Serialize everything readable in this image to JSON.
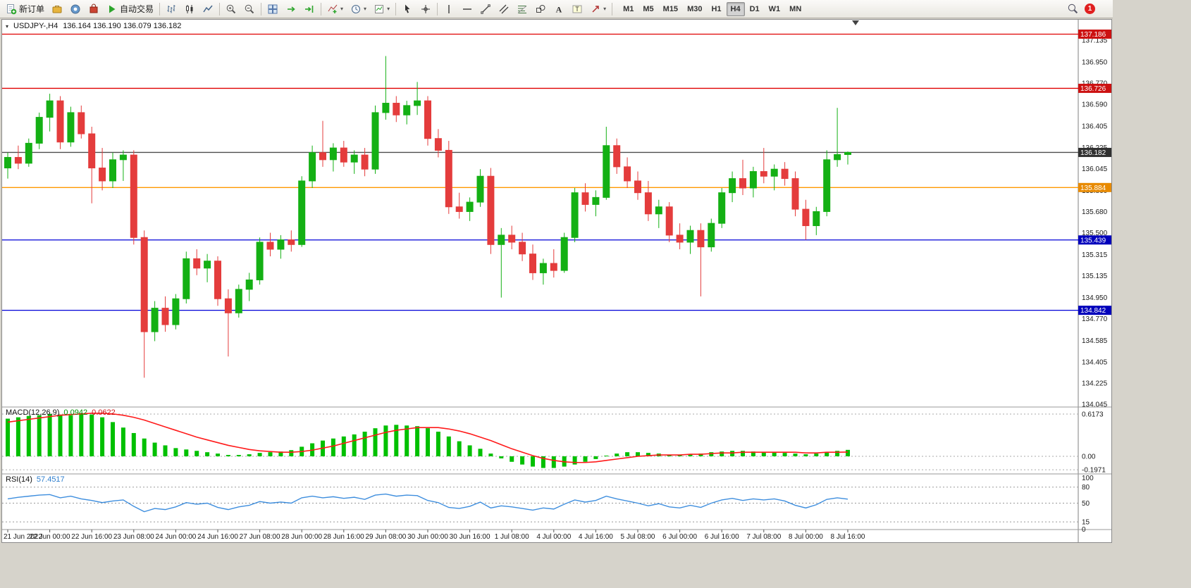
{
  "toolbar": {
    "new_order_label": "新订单",
    "autotrading_label": "自动交易",
    "timeframes": [
      "M1",
      "M5",
      "M15",
      "M30",
      "H1",
      "H4",
      "D1",
      "W1",
      "MN"
    ],
    "active_timeframe": "H4",
    "notification_count": "1",
    "icon_names": [
      "new-order-icon",
      "metaeditor-icon",
      "community-icon",
      "market-icon",
      "autotrading-icon",
      "bar-chart-icon",
      "candlestick-icon",
      "line-chart-icon",
      "zoom-in-icon",
      "zoom-out-icon",
      "tile-windows-icon",
      "auto-scroll-icon",
      "chart-shift-icon",
      "indicators-icon",
      "periods-icon",
      "templates-icon",
      "cursor-icon",
      "crosshair-icon",
      "vertical-line-icon",
      "horizontal-line-icon",
      "trendline-icon",
      "channel-icon",
      "fibonacci-icon",
      "shapes-icon",
      "text-icon",
      "text-label-icon",
      "arrows-icon",
      "search-icon",
      "notification-icon"
    ]
  },
  "chart": {
    "symbol_period": "USDJPY-,H4",
    "ohlc": "136.164 136.190 136.079 136.182"
  },
  "colors": {
    "up": "#14b014",
    "down": "#e43c3c",
    "macd_hist": "#00c000",
    "macd_signal": "#ff1a1a",
    "rsi": "#3e8ede",
    "line_red": "#e00000",
    "line_orange": "#ff9900",
    "line_blue": "#0000d8",
    "line_current": "#4d4d4d",
    "badge_red": "#cc1111",
    "badge_orange": "#e88a00",
    "badge_blue": "#0000bb",
    "badge_current": "#303030"
  },
  "chart_data": {
    "type": "candlestick",
    "symbol": "USDJPY-",
    "timeframe": "H4",
    "ohlc_current": {
      "open": 136.164,
      "high": 136.19,
      "low": 136.079,
      "close": 136.182
    },
    "ylim": [
      134.045,
      137.135
    ],
    "price_axis_labels": [
      "137.135",
      "136.950",
      "136.770",
      "136.590",
      "136.405",
      "136.225",
      "136.045",
      "135.860",
      "135.680",
      "135.500",
      "135.315",
      "135.135",
      "134.950",
      "134.770",
      "134.585",
      "134.405",
      "134.225",
      "134.045"
    ],
    "x_labels": [
      "21 Jun 2022",
      "22 Jun 00:00",
      "22 Jun 16:00",
      "23 Jun 08:00",
      "24 Jun 00:00",
      "24 Jun 16:00",
      "27 Jun 08:00",
      "28 Jun 00:00",
      "28 Jun 16:00",
      "29 Jun 08:00",
      "30 Jun 00:00",
      "30 Jun 16:00",
      "1 Jul 08:00",
      "4 Jul 00:00",
      "4 Jul 16:00",
      "5 Jul 08:00",
      "6 Jul 00:00",
      "6 Jul 16:00",
      "7 Jul 08:00",
      "8 Jul 00:00",
      "8 Jul 16:00"
    ],
    "candles_per_label": 4,
    "hlines": [
      {
        "price": 137.186,
        "label": "137.186",
        "type": "red"
      },
      {
        "price": 136.726,
        "label": "136.726",
        "type": "red"
      },
      {
        "price": 136.182,
        "label": "136.182",
        "type": "current"
      },
      {
        "price": 135.884,
        "label": "135.884",
        "type": "orange"
      },
      {
        "price": 135.439,
        "label": "135.439",
        "type": "blue"
      },
      {
        "price": 134.842,
        "label": "134.842",
        "type": "blue"
      }
    ],
    "candles": [
      [
        136.05,
        136.18,
        135.96,
        136.14
      ],
      [
        136.14,
        136.24,
        136.04,
        136.09
      ],
      [
        136.09,
        136.3,
        136.06,
        136.26
      ],
      [
        136.26,
        136.52,
        136.21,
        136.48
      ],
      [
        136.48,
        136.68,
        136.36,
        136.62
      ],
      [
        136.62,
        136.66,
        136.21,
        136.27
      ],
      [
        136.27,
        136.57,
        136.23,
        136.52
      ],
      [
        136.52,
        136.58,
        136.3,
        136.34
      ],
      [
        136.34,
        136.4,
        135.75,
        136.05
      ],
      [
        136.05,
        136.22,
        135.86,
        135.94
      ],
      [
        135.94,
        136.18,
        135.88,
        136.12
      ],
      [
        136.12,
        136.2,
        135.94,
        136.16
      ],
      [
        136.16,
        136.2,
        135.4,
        135.46
      ],
      [
        135.46,
        135.52,
        134.27,
        134.66
      ],
      [
        134.66,
        134.92,
        134.58,
        134.86
      ],
      [
        134.86,
        134.96,
        134.66,
        134.72
      ],
      [
        134.72,
        134.98,
        134.68,
        134.94
      ],
      [
        134.94,
        135.34,
        134.9,
        135.28
      ],
      [
        135.28,
        135.36,
        135.14,
        135.2
      ],
      [
        135.2,
        135.32,
        135.08,
        135.26
      ],
      [
        135.26,
        135.3,
        134.88,
        134.94
      ],
      [
        134.94,
        135.02,
        134.45,
        134.82
      ],
      [
        134.82,
        135.06,
        134.78,
        135.02
      ],
      [
        135.02,
        135.16,
        134.92,
        135.1
      ],
      [
        135.1,
        135.46,
        135.06,
        135.42
      ],
      [
        135.42,
        135.5,
        135.3,
        135.36
      ],
      [
        135.36,
        135.48,
        135.28,
        135.44
      ],
      [
        135.44,
        135.52,
        135.34,
        135.4
      ],
      [
        135.4,
        135.98,
        135.38,
        135.94
      ],
      [
        135.94,
        136.24,
        135.88,
        136.18
      ],
      [
        136.18,
        136.45,
        136.06,
        136.12
      ],
      [
        136.12,
        136.26,
        136.02,
        136.22
      ],
      [
        136.22,
        136.28,
        136.06,
        136.1
      ],
      [
        136.1,
        136.2,
        136.0,
        136.16
      ],
      [
        136.16,
        136.22,
        135.98,
        136.04
      ],
      [
        136.04,
        136.58,
        136.0,
        136.52
      ],
      [
        136.52,
        137.0,
        136.46,
        136.6
      ],
      [
        136.6,
        136.66,
        136.44,
        136.5
      ],
      [
        136.5,
        136.62,
        136.42,
        136.58
      ],
      [
        136.58,
        136.78,
        136.5,
        136.62
      ],
      [
        136.62,
        136.66,
        136.24,
        136.3
      ],
      [
        136.3,
        136.38,
        136.14,
        136.2
      ],
      [
        136.2,
        136.28,
        135.66,
        135.72
      ],
      [
        135.72,
        135.84,
        135.62,
        135.68
      ],
      [
        135.68,
        135.8,
        135.6,
        135.76
      ],
      [
        135.76,
        136.04,
        135.72,
        135.98
      ],
      [
        135.98,
        136.05,
        135.32,
        135.4
      ],
      [
        135.4,
        135.54,
        134.95,
        135.48
      ],
      [
        135.48,
        135.56,
        135.36,
        135.42
      ],
      [
        135.42,
        135.5,
        135.26,
        135.32
      ],
      [
        135.32,
        135.4,
        135.1,
        135.16
      ],
      [
        135.16,
        135.28,
        135.06,
        135.24
      ],
      [
        135.24,
        135.36,
        135.12,
        135.18
      ],
      [
        135.18,
        135.5,
        135.16,
        135.46
      ],
      [
        135.46,
        135.88,
        135.42,
        135.84
      ],
      [
        135.84,
        135.92,
        135.68,
        135.74
      ],
      [
        135.74,
        135.86,
        135.64,
        135.8
      ],
      [
        135.8,
        136.4,
        135.78,
        136.24
      ],
      [
        136.24,
        136.3,
        136.0,
        136.06
      ],
      [
        136.06,
        136.14,
        135.88,
        135.94
      ],
      [
        135.94,
        136.02,
        135.78,
        135.84
      ],
      [
        135.84,
        135.94,
        135.6,
        135.66
      ],
      [
        135.66,
        135.78,
        135.54,
        135.72
      ],
      [
        135.72,
        135.76,
        135.42,
        135.48
      ],
      [
        135.48,
        135.58,
        135.36,
        135.42
      ],
      [
        135.42,
        135.56,
        135.32,
        135.52
      ],
      [
        135.52,
        135.58,
        134.96,
        135.38
      ],
      [
        135.38,
        135.62,
        135.34,
        135.58
      ],
      [
        135.58,
        135.88,
        135.54,
        135.84
      ],
      [
        135.84,
        136.02,
        135.76,
        135.96
      ],
      [
        135.96,
        136.12,
        135.82,
        135.88
      ],
      [
        135.88,
        136.06,
        135.8,
        136.02
      ],
      [
        136.02,
        136.22,
        135.92,
        135.98
      ],
      [
        135.98,
        136.08,
        135.86,
        136.04
      ],
      [
        136.04,
        136.1,
        135.9,
        135.96
      ],
      [
        135.96,
        136.02,
        135.64,
        135.7
      ],
      [
        135.7,
        135.78,
        135.44,
        135.56
      ],
      [
        135.56,
        135.72,
        135.48,
        135.68
      ],
      [
        135.68,
        136.2,
        135.64,
        136.12
      ],
      [
        136.12,
        136.56,
        136.06,
        136.164
      ],
      [
        136.164,
        136.19,
        136.079,
        136.182
      ]
    ],
    "indicators": {
      "macd": {
        "name": "MACD(12,26,9)",
        "value_main": "0.0942",
        "value_signal": "0.0622",
        "axis_labels": [
          "0.6173",
          "0.00",
          "-0.1971"
        ],
        "axis_values": [
          0.6173,
          0.0,
          -0.1971
        ],
        "histogram": [
          0.55,
          0.57,
          0.59,
          0.6,
          0.62,
          0.61,
          0.6,
          0.62,
          0.61,
          0.57,
          0.5,
          0.42,
          0.34,
          0.26,
          0.2,
          0.16,
          0.12,
          0.1,
          0.08,
          0.06,
          0.04,
          0.02,
          0.02,
          0.03,
          0.05,
          0.06,
          0.07,
          0.09,
          0.14,
          0.19,
          0.23,
          0.26,
          0.29,
          0.32,
          0.36,
          0.41,
          0.45,
          0.46,
          0.45,
          0.44,
          0.41,
          0.36,
          0.29,
          0.22,
          0.16,
          0.11,
          0.04,
          -0.03,
          -0.08,
          -0.12,
          -0.15,
          -0.17,
          -0.17,
          -0.15,
          -0.12,
          -0.08,
          -0.04,
          0.01,
          0.04,
          0.06,
          0.06,
          0.05,
          0.04,
          0.02,
          0.02,
          0.03,
          0.04,
          0.06,
          0.07,
          0.08,
          0.08,
          0.07,
          0.06,
          0.06,
          0.05,
          0.04,
          0.03,
          0.04,
          0.06,
          0.08,
          0.0942
        ],
        "signal": [
          0.5,
          0.52,
          0.54,
          0.56,
          0.58,
          0.6,
          0.61,
          0.62,
          0.63,
          0.63,
          0.62,
          0.6,
          0.57,
          0.53,
          0.48,
          0.43,
          0.38,
          0.33,
          0.28,
          0.24,
          0.2,
          0.16,
          0.13,
          0.1,
          0.08,
          0.07,
          0.06,
          0.06,
          0.07,
          0.09,
          0.12,
          0.15,
          0.19,
          0.23,
          0.27,
          0.31,
          0.35,
          0.38,
          0.4,
          0.42,
          0.42,
          0.42,
          0.4,
          0.37,
          0.33,
          0.28,
          0.23,
          0.17,
          0.11,
          0.06,
          0.01,
          -0.03,
          -0.06,
          -0.08,
          -0.09,
          -0.09,
          -0.08,
          -0.06,
          -0.04,
          -0.02,
          0.0,
          0.01,
          0.02,
          0.02,
          0.02,
          0.03,
          0.03,
          0.04,
          0.05,
          0.05,
          0.06,
          0.06,
          0.06,
          0.06,
          0.06,
          0.06,
          0.05,
          0.05,
          0.06,
          0.06,
          0.0622
        ]
      },
      "rsi": {
        "name": "RSI(14)",
        "value": "57.4517",
        "axis_labels": [
          "100",
          "80",
          "50",
          "15",
          "0"
        ],
        "axis_values": [
          100,
          80,
          50,
          15,
          0
        ],
        "levels": [
          80,
          50,
          15
        ],
        "series": [
          58,
          61,
          63,
          65,
          66,
          60,
          63,
          58,
          55,
          51,
          54,
          56,
          44,
          34,
          40,
          38,
          43,
          51,
          48,
          50,
          42,
          38,
          43,
          46,
          53,
          50,
          52,
          50,
          60,
          63,
          60,
          62,
          59,
          61,
          57,
          65,
          67,
          63,
          65,
          64,
          55,
          51,
          42,
          40,
          44,
          52,
          41,
          45,
          43,
          40,
          37,
          41,
          39,
          48,
          56,
          52,
          55,
          63,
          58,
          54,
          50,
          45,
          49,
          43,
          41,
          46,
          42,
          50,
          56,
          59,
          55,
          58,
          56,
          58,
          54,
          46,
          41,
          47,
          57,
          60,
          57.45
        ]
      }
    }
  }
}
